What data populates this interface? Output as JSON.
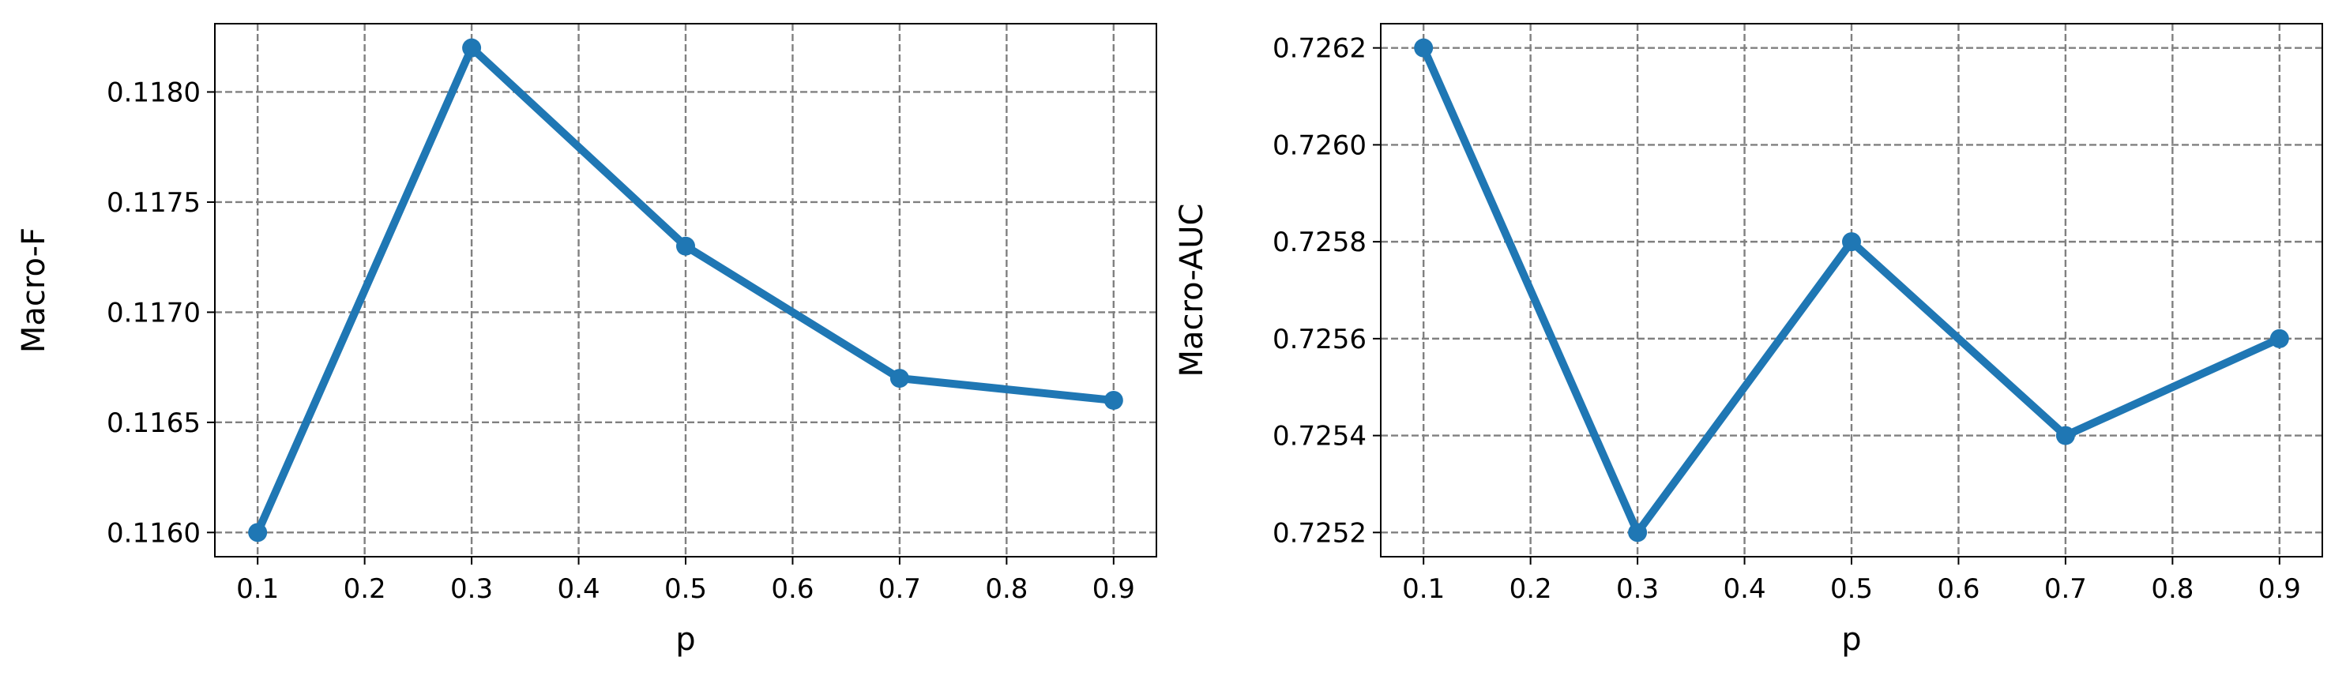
{
  "chart_data": [
    {
      "type": "line",
      "xlabel": "p",
      "ylabel": "Macro-F",
      "x": [
        0.1,
        0.3,
        0.5,
        0.7,
        0.9
      ],
      "series": [
        {
          "values": [
            0.116,
            0.1182,
            0.1173,
            0.1167,
            0.1166
          ]
        }
      ],
      "xticks": [
        "0.1",
        "0.2",
        "0.3",
        "0.4",
        "0.5",
        "0.6",
        "0.7",
        "0.8",
        "0.9"
      ],
      "yticks": [
        "0.1160",
        "0.1165",
        "0.1170",
        "0.1175",
        "0.1180"
      ],
      "xlim": [
        0.06,
        0.94
      ],
      "ylim": [
        0.11589,
        0.11831
      ],
      "grid": true,
      "grid_style": "dashed",
      "line_color": "#1f77b4"
    },
    {
      "type": "line",
      "xlabel": "p",
      "ylabel": "Macro-AUC",
      "x": [
        0.1,
        0.3,
        0.5,
        0.7,
        0.9
      ],
      "series": [
        {
          "values": [
            0.7262,
            0.7252,
            0.7258,
            0.7254,
            0.7256
          ]
        }
      ],
      "xticks": [
        "0.1",
        "0.2",
        "0.3",
        "0.4",
        "0.5",
        "0.6",
        "0.7",
        "0.8",
        "0.9"
      ],
      "yticks": [
        "0.7252",
        "0.7254",
        "0.7256",
        "0.7258",
        "0.7260",
        "0.7262"
      ],
      "xlim": [
        0.06,
        0.94
      ],
      "ylim": [
        0.72515,
        0.72625
      ],
      "grid": true,
      "grid_style": "dashed",
      "line_color": "#1f77b4"
    }
  ]
}
